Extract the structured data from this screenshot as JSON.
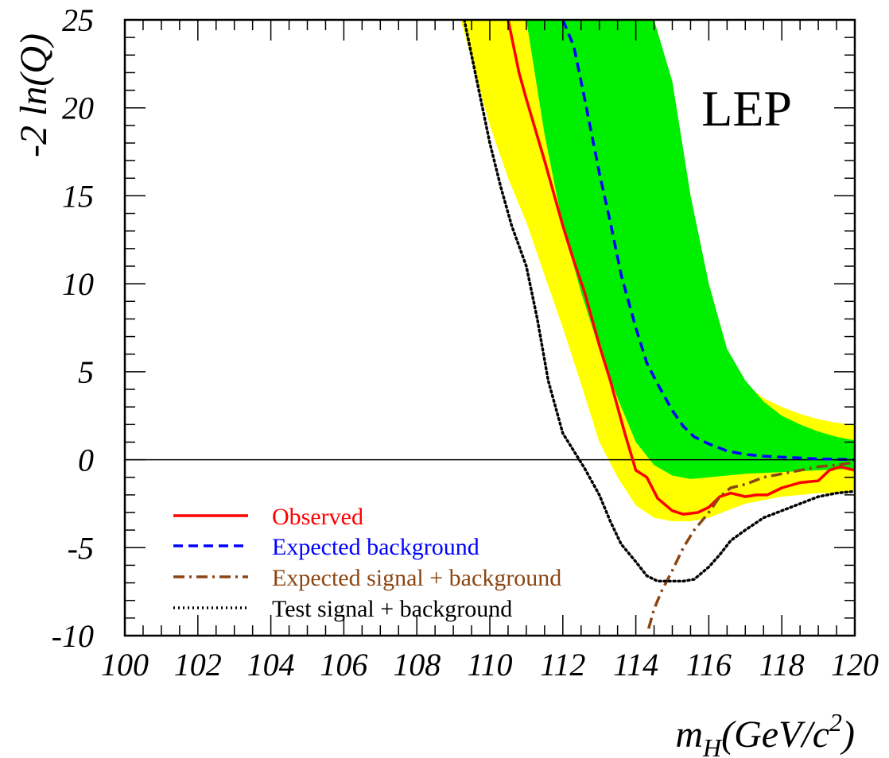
{
  "chart_data": {
    "type": "line",
    "experiment_label": "LEP",
    "xlabel": {
      "main": "m",
      "sub": "H",
      "unit_prefix": "(GeV/c",
      "sup": "2",
      "unit_suffix": ")"
    },
    "ylabel": "-2 ln(Q)",
    "xlim": [
      100,
      120
    ],
    "ylim": [
      -10,
      25
    ],
    "x_ticks": [
      "100",
      "102",
      "104",
      "106",
      "108",
      "110",
      "112",
      "114",
      "116",
      "118",
      "120"
    ],
    "y_ticks": [
      "-10",
      "-5",
      "0",
      "5",
      "10",
      "15",
      "20",
      "25"
    ],
    "zero_line": 0,
    "legend_position": "bottom-left",
    "colors": {
      "observed": "#ff0000",
      "expected_background": "#0000ff",
      "expected_signal_background": "#8b4513",
      "test_signal_background": "#000000",
      "band_2sigma": "#ffff00",
      "band_1sigma": "#00ee00"
    },
    "series": [
      {
        "key": "observed",
        "name": "Observed",
        "style": "solid",
        "x": [
          110.5,
          110.8,
          111.0,
          111.5,
          112.0,
          112.3,
          112.6,
          113.0,
          113.3,
          113.7,
          114.0,
          114.3,
          114.6,
          115.0,
          115.3,
          115.7,
          116.0,
          116.3,
          116.6,
          117.0,
          117.3,
          117.6,
          118.0,
          118.5,
          119.0,
          119.3,
          119.6,
          120.0
        ],
        "y": [
          25,
          22.0,
          20.5,
          17.0,
          13.3,
          11.3,
          9.5,
          6.5,
          4.5,
          1.5,
          -0.6,
          -1.0,
          -2.2,
          -2.9,
          -3.1,
          -3.0,
          -2.7,
          -2.1,
          -1.9,
          -2.1,
          -2.0,
          -2.0,
          -1.6,
          -1.3,
          -1.2,
          -0.6,
          -0.4,
          -0.6
        ]
      },
      {
        "key": "expected_background",
        "name": "Expected background",
        "style": "dashed",
        "x": [
          112.0,
          112.3,
          112.6,
          113.0,
          113.3,
          113.6,
          114.0,
          114.3,
          114.6,
          115.0,
          115.3,
          115.6,
          116.0,
          116.5,
          117.0,
          117.5,
          118.0,
          118.5,
          119.0,
          119.5,
          120.0
        ],
        "y": [
          25,
          23.5,
          20.5,
          16.3,
          13.5,
          10.5,
          7.5,
          5.5,
          4.3,
          2.8,
          1.9,
          1.3,
          0.9,
          0.5,
          0.3,
          0.2,
          0.15,
          0.1,
          0.05,
          0.03,
          0.0
        ]
      },
      {
        "key": "expected_signal_background",
        "name": "Expected signal + background",
        "style": "dashdot",
        "x": [
          114.35,
          114.5,
          114.7,
          115.0,
          115.3,
          115.6,
          116.0,
          116.3,
          116.6,
          117.0,
          117.5,
          118.0,
          118.5,
          119.0,
          119.5,
          120.0
        ],
        "y": [
          -9.6,
          -8.5,
          -7.5,
          -6.3,
          -5.0,
          -4.0,
          -3.0,
          -2.1,
          -1.6,
          -1.4,
          -1.0,
          -0.8,
          -0.6,
          -0.4,
          -0.3,
          -0.15
        ]
      },
      {
        "key": "test_signal_background",
        "name": "Test signal + background",
        "style": "dotted",
        "x": [
          109.3,
          109.6,
          110.0,
          110.3,
          110.6,
          111.0,
          111.3,
          111.6,
          112.0,
          112.3,
          112.6,
          113.0,
          113.3,
          113.6,
          114.0,
          114.3,
          114.6,
          115.0,
          115.3,
          115.6,
          116.0,
          116.3,
          116.6,
          117.0,
          117.5,
          118.0,
          118.5,
          119.0,
          119.5,
          120.0
        ],
        "y": [
          25,
          22.0,
          18.0,
          15.5,
          13.3,
          11.0,
          8.0,
          4.5,
          1.5,
          0.5,
          -0.5,
          -2.0,
          -3.5,
          -4.8,
          -5.8,
          -6.6,
          -6.9,
          -6.9,
          -6.9,
          -6.8,
          -6.1,
          -5.4,
          -4.6,
          -4.0,
          -3.3,
          -2.9,
          -2.5,
          -2.1,
          -1.9,
          -1.8
        ]
      }
    ],
    "bands": {
      "x": [
        109.2,
        110.0,
        110.5,
        111.0,
        111.5,
        112.0,
        112.5,
        113.0,
        113.5,
        114.0,
        114.5,
        115.0,
        115.5,
        116.0,
        116.5,
        117.0,
        117.5,
        118.0,
        118.5,
        119.0,
        119.5,
        120.0
      ],
      "band_2sigma_lower": [
        25,
        19.0,
        16.0,
        13.5,
        10.5,
        7.5,
        4.3,
        1.0,
        -1.0,
        -2.6,
        -3.3,
        -3.5,
        -3.5,
        -3.3,
        -2.9,
        -2.5,
        -2.3,
        -2.1,
        -2.0,
        -1.9,
        -1.9,
        -1.8
      ],
      "band_2sigma_upper": [
        25,
        25,
        25,
        25,
        25,
        25,
        25,
        25,
        25,
        25,
        21.0,
        15.5,
        10.5,
        7.5,
        5.5,
        4.3,
        3.5,
        3.0,
        2.6,
        2.3,
        2.1,
        2.0
      ],
      "band_1sigma_lower": [
        null,
        null,
        null,
        25,
        18.5,
        13.3,
        9.5,
        6.3,
        3.5,
        1.0,
        -0.3,
        -0.9,
        -1.1,
        -1.0,
        -0.9,
        -0.8,
        -0.75,
        -0.7,
        -0.65,
        -0.6,
        -0.55,
        -0.5
      ],
      "band_1sigma_upper": [
        null,
        null,
        null,
        25,
        25,
        25,
        25,
        25,
        25,
        25,
        25,
        21.5,
        15.0,
        10.0,
        6.3,
        4.5,
        3.3,
        2.5,
        2.0,
        1.6,
        1.3,
        1.1
      ]
    }
  }
}
